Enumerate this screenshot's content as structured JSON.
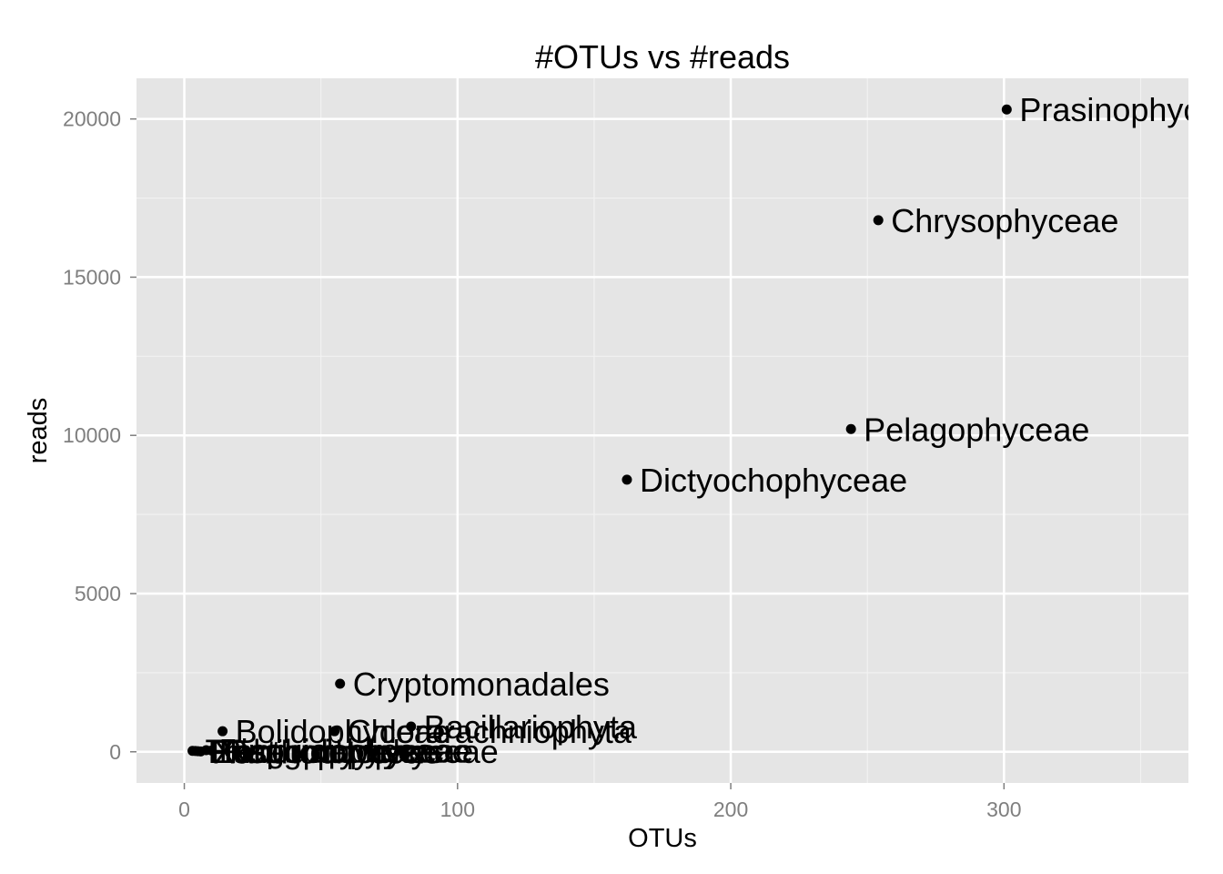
{
  "chart_data": {
    "type": "scatter",
    "title": "#OTUs vs #reads",
    "xlabel": "OTUs",
    "ylabel": "reads",
    "xlim": [
      -17.5,
      367.5
    ],
    "ylim": [
      -985,
      21285
    ],
    "xticks": [
      0,
      100,
      200,
      300
    ],
    "xtick_labels": [
      "0",
      "100",
      "200",
      "300"
    ],
    "yticks": [
      0,
      5000,
      10000,
      15000,
      20000
    ],
    "ytick_labels": [
      "0",
      "5000",
      "10000",
      "15000",
      "20000"
    ],
    "grid": true,
    "points": [
      {
        "x": 301,
        "y": 20300,
        "label": "Prasinophyceae"
      },
      {
        "x": 254,
        "y": 16800,
        "label": "Chrysophyceae"
      },
      {
        "x": 244,
        "y": 10200,
        "label": "Pelagophyceae"
      },
      {
        "x": 162,
        "y": 8600,
        "label": "Dictyochophyceae"
      },
      {
        "x": 57,
        "y": 2150,
        "label": "Cryptomonadales"
      },
      {
        "x": 83,
        "y": 800,
        "label": "Bacillariophyta"
      },
      {
        "x": 55,
        "y": 650,
        "label": "Chlorarachniophyta"
      },
      {
        "x": 14,
        "y": 650,
        "label": "Bolidophyceae"
      },
      {
        "x": 8,
        "y": 50,
        "label": "Pinguiophyceae"
      },
      {
        "x": 3,
        "y": 30,
        "label": "Trebouxiophyceae"
      },
      {
        "x": 5,
        "y": 20,
        "label": "Eustigmatophyceae"
      },
      {
        "x": 10,
        "y": 40,
        "label": "Raphidophyceae"
      },
      {
        "x": 6,
        "y": 10,
        "label": "Xanthophyceae"
      },
      {
        "x": 4,
        "y": 25,
        "label": "Phaeophyceae"
      }
    ]
  }
}
